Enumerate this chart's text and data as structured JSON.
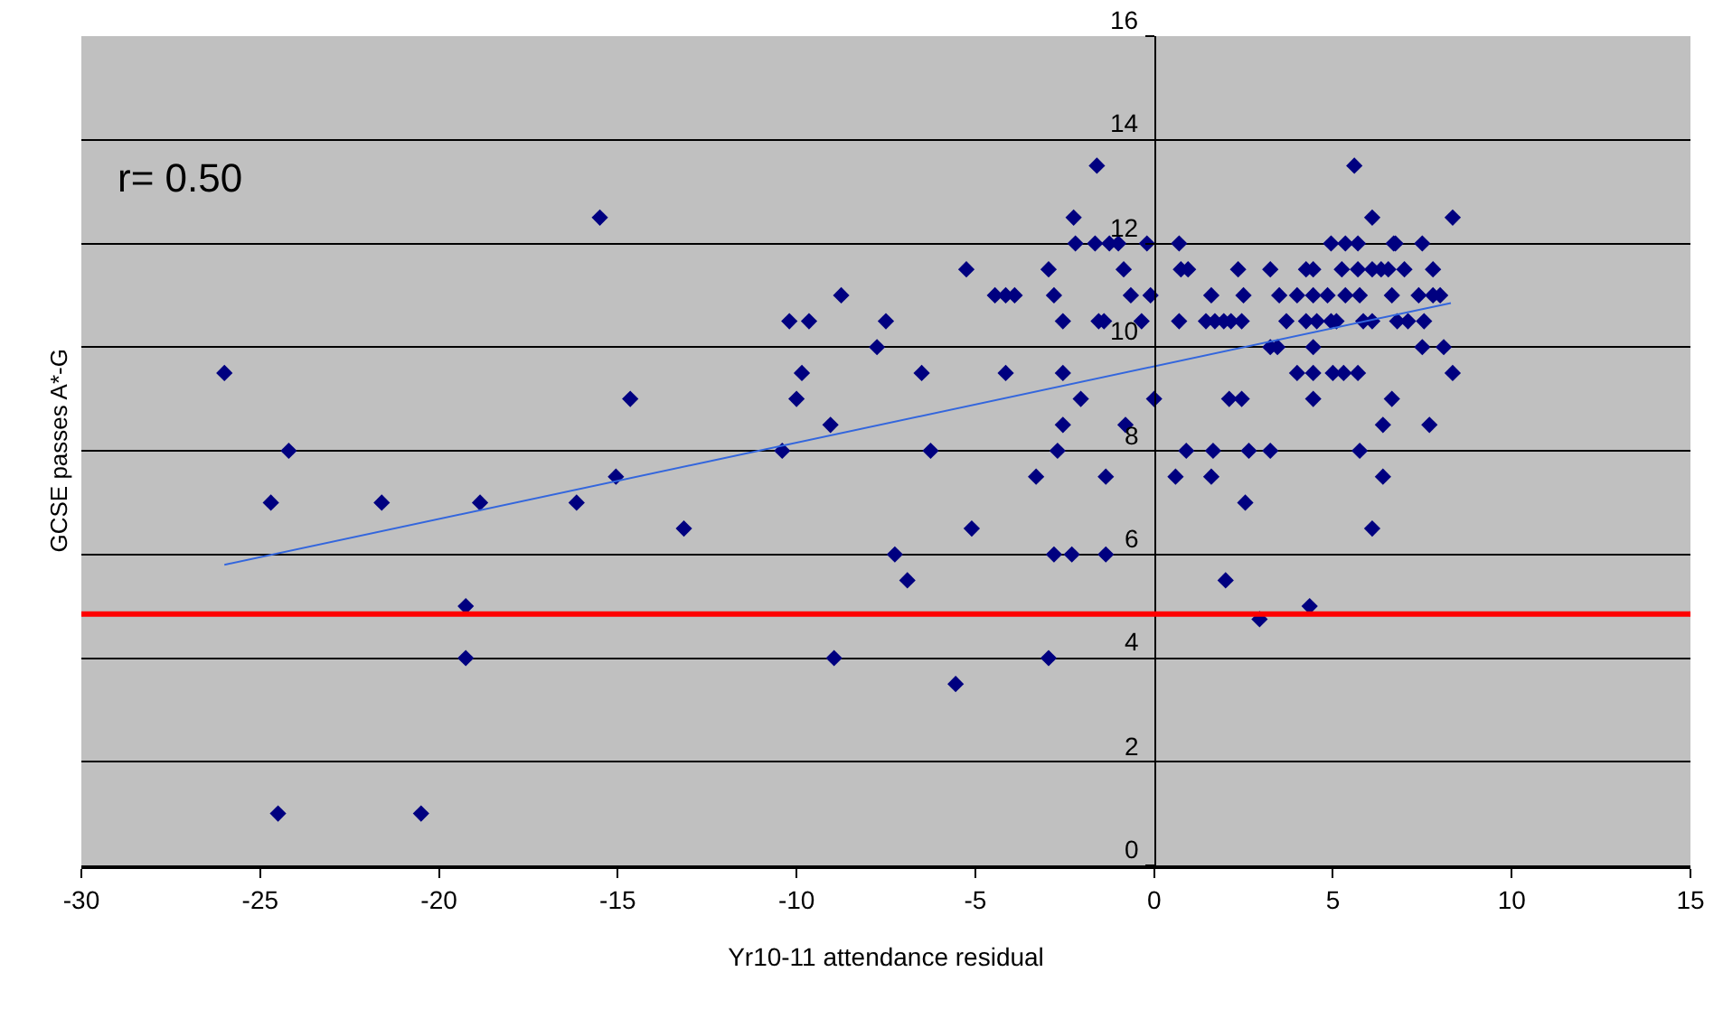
{
  "chart_data": {
    "type": "scatter",
    "xlabel": "Yr10-11 attendance residual",
    "ylabel": "GCSE passes A*-G",
    "xlim": [
      -30,
      15
    ],
    "xticks": [
      -30,
      -25,
      -20,
      -15,
      -10,
      -5,
      0,
      5,
      10,
      15
    ],
    "ylim": [
      0,
      16
    ],
    "yticks": [
      0,
      2,
      4,
      6,
      8,
      10,
      12,
      14,
      16
    ],
    "grid": "y",
    "marker": "diamond",
    "annotations": [
      "r= 0.50"
    ],
    "ref_lines": [
      {
        "axis": "y",
        "value": 4.85,
        "label": null,
        "color": "#ff0000",
        "line_style": "solid"
      }
    ],
    "series": [
      {
        "color": "#000080",
        "x": [
          -26,
          -24.7,
          -24.2,
          -24.5,
          -21.6,
          -20.5,
          -19.25,
          -19.25,
          -18.85,
          -16.15,
          -15.5,
          -15.05,
          -14.65,
          -13.15,
          -10.4,
          -10.2,
          -10,
          -9.85,
          -9.65,
          -9.05,
          -8.95,
          -8.75,
          -7.75,
          -7.5,
          -7.25,
          -6.9,
          -6.5,
          -6.25,
          -5.55,
          -5.25,
          -5.1,
          -4.45,
          -4.15,
          -3.9,
          -4.15,
          -3.3,
          -2.95,
          -2.8,
          -2.95,
          -2.8,
          -2.7,
          -2.55,
          -2.55,
          -2.55,
          -2.25,
          -2.2,
          -2.3,
          -2.05,
          -1.6,
          -1.65,
          -1.55,
          -1.4,
          -1.35,
          -1.35,
          -1.25,
          -1.0,
          -0.85,
          -0.8,
          -0.65,
          -0.35,
          -0.2,
          -0.1,
          0,
          0.7,
          0.75,
          0.95,
          0.7,
          0.9,
          0.6,
          1.6,
          1.65,
          1.6,
          1.45,
          1.7,
          1.95,
          2.15,
          2.45,
          2.35,
          2.5,
          2.1,
          2.45,
          2.65,
          2.55,
          2.0,
          2.95,
          3.25,
          3.25,
          3.45,
          3.25,
          3.5,
          3.7,
          4.0,
          4.0,
          4.25,
          4.45,
          4.45,
          4.25,
          4.55,
          4.45,
          4.45,
          4.45,
          4.35,
          4.85,
          4.95,
          4.95,
          5.0,
          5.1,
          5.25,
          5.35,
          5.3,
          5.35,
          5.7,
          5.7,
          5.7,
          5.6,
          5.75,
          5.75,
          5.85,
          6.1,
          6.1,
          6.1,
          6.1,
          6.35,
          6.4,
          6.4,
          6.55,
          6.7,
          6.75,
          6.65,
          6.65,
          6.8,
          7.0,
          7.1,
          7.4,
          7.5,
          7.5,
          7.55,
          7.7,
          7.8,
          7.8,
          8.0,
          8.1,
          8.35,
          8.35
        ],
        "values": [
          9.5,
          7,
          8,
          1,
          7,
          1,
          5,
          4,
          7,
          7,
          12.5,
          7.5,
          9,
          6.5,
          8,
          10.5,
          9,
          9.5,
          10.5,
          8.5,
          4,
          11,
          10,
          10.5,
          6,
          5.5,
          9.5,
          8,
          3.5,
          11.5,
          6.5,
          11,
          11,
          11,
          9.5,
          7.5,
          11.5,
          11,
          4,
          6,
          8,
          8.5,
          9.5,
          10.5,
          12.5,
          12,
          6,
          9,
          13.5,
          12,
          10.5,
          10.5,
          7.5,
          6,
          12,
          12,
          11.5,
          8.5,
          11,
          10.5,
          12,
          11,
          9,
          12,
          11.5,
          11.5,
          10.5,
          8,
          7.5,
          11,
          8,
          7.5,
          10.5,
          10.5,
          10.5,
          10.5,
          10.5,
          11.5,
          11,
          9,
          9,
          8,
          7,
          5.5,
          4.75,
          11.5,
          10,
          10,
          8,
          11,
          10.5,
          11,
          9.5,
          11.5,
          11.5,
          11,
          10.5,
          10.5,
          10,
          9.5,
          9,
          5,
          11,
          12,
          10.5,
          9.5,
          10.5,
          11.5,
          12,
          9.5,
          11,
          12,
          11.5,
          9.5,
          13.5,
          11,
          8,
          10.5,
          10.5,
          12.5,
          11.5,
          6.5,
          11.5,
          8.5,
          7.5,
          11.5,
          12,
          12,
          11,
          9,
          10.5,
          11.5,
          10.5,
          11,
          12,
          10,
          10.5,
          8.5,
          11.5,
          11,
          11,
          10,
          12.5,
          9.5
        ]
      },
      {
        "type": "line",
        "marker": "none",
        "color": "#3366dd",
        "x": [
          -26,
          8.3
        ],
        "values": [
          5.8,
          10.85
        ]
      }
    ]
  }
}
